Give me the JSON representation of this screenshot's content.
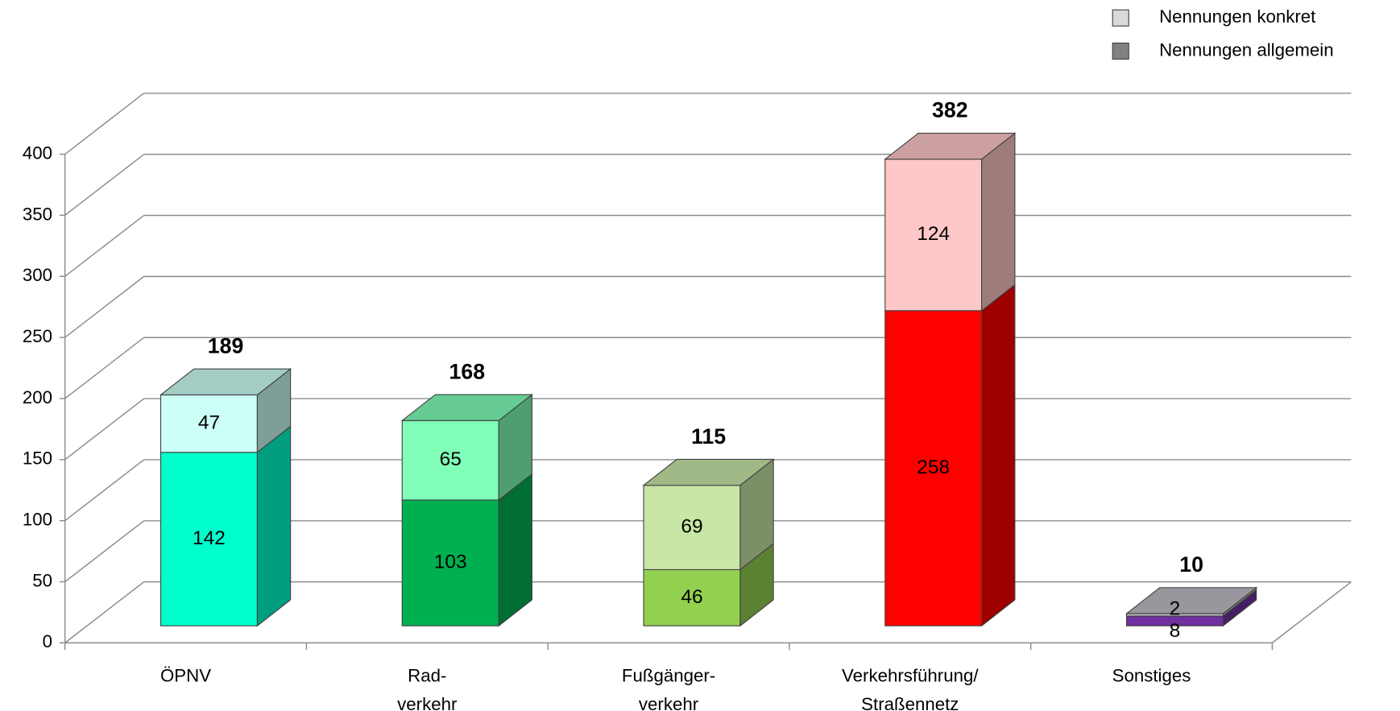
{
  "chart_data": {
    "type": "bar3d_stacked",
    "categories": [
      [
        "ÖPNV"
      ],
      [
        "Rad-",
        "verkehr"
      ],
      [
        "Fußgänger-",
        "verkehr"
      ],
      [
        "Verkehrsführung/",
        "Straßennetz"
      ],
      [
        "Sonstiges"
      ]
    ],
    "series": [
      {
        "name": "Nennungen allgemein",
        "color": "#808080",
        "colors": [
          "#00ffcc",
          "#00b050",
          "#92d050",
          "#ff0000",
          "#7030a0"
        ],
        "values": [
          142,
          103,
          46,
          258,
          8
        ]
      },
      {
        "name": "Nennungen konkret",
        "color": "#d9d9d9",
        "colors": [
          "#ccfff5",
          "#80ffb8",
          "#c8e6a6",
          "#ffc8c8",
          "#c0bcc4"
        ],
        "values": [
          47,
          65,
          69,
          124,
          2
        ]
      }
    ],
    "totals": [
      189,
      168,
      115,
      382,
      10
    ],
    "ylim": [
      0,
      400
    ],
    "yticks": [
      0,
      50,
      100,
      150,
      200,
      250,
      300,
      350,
      400
    ],
    "grid": true,
    "legend_position": "top-right"
  }
}
